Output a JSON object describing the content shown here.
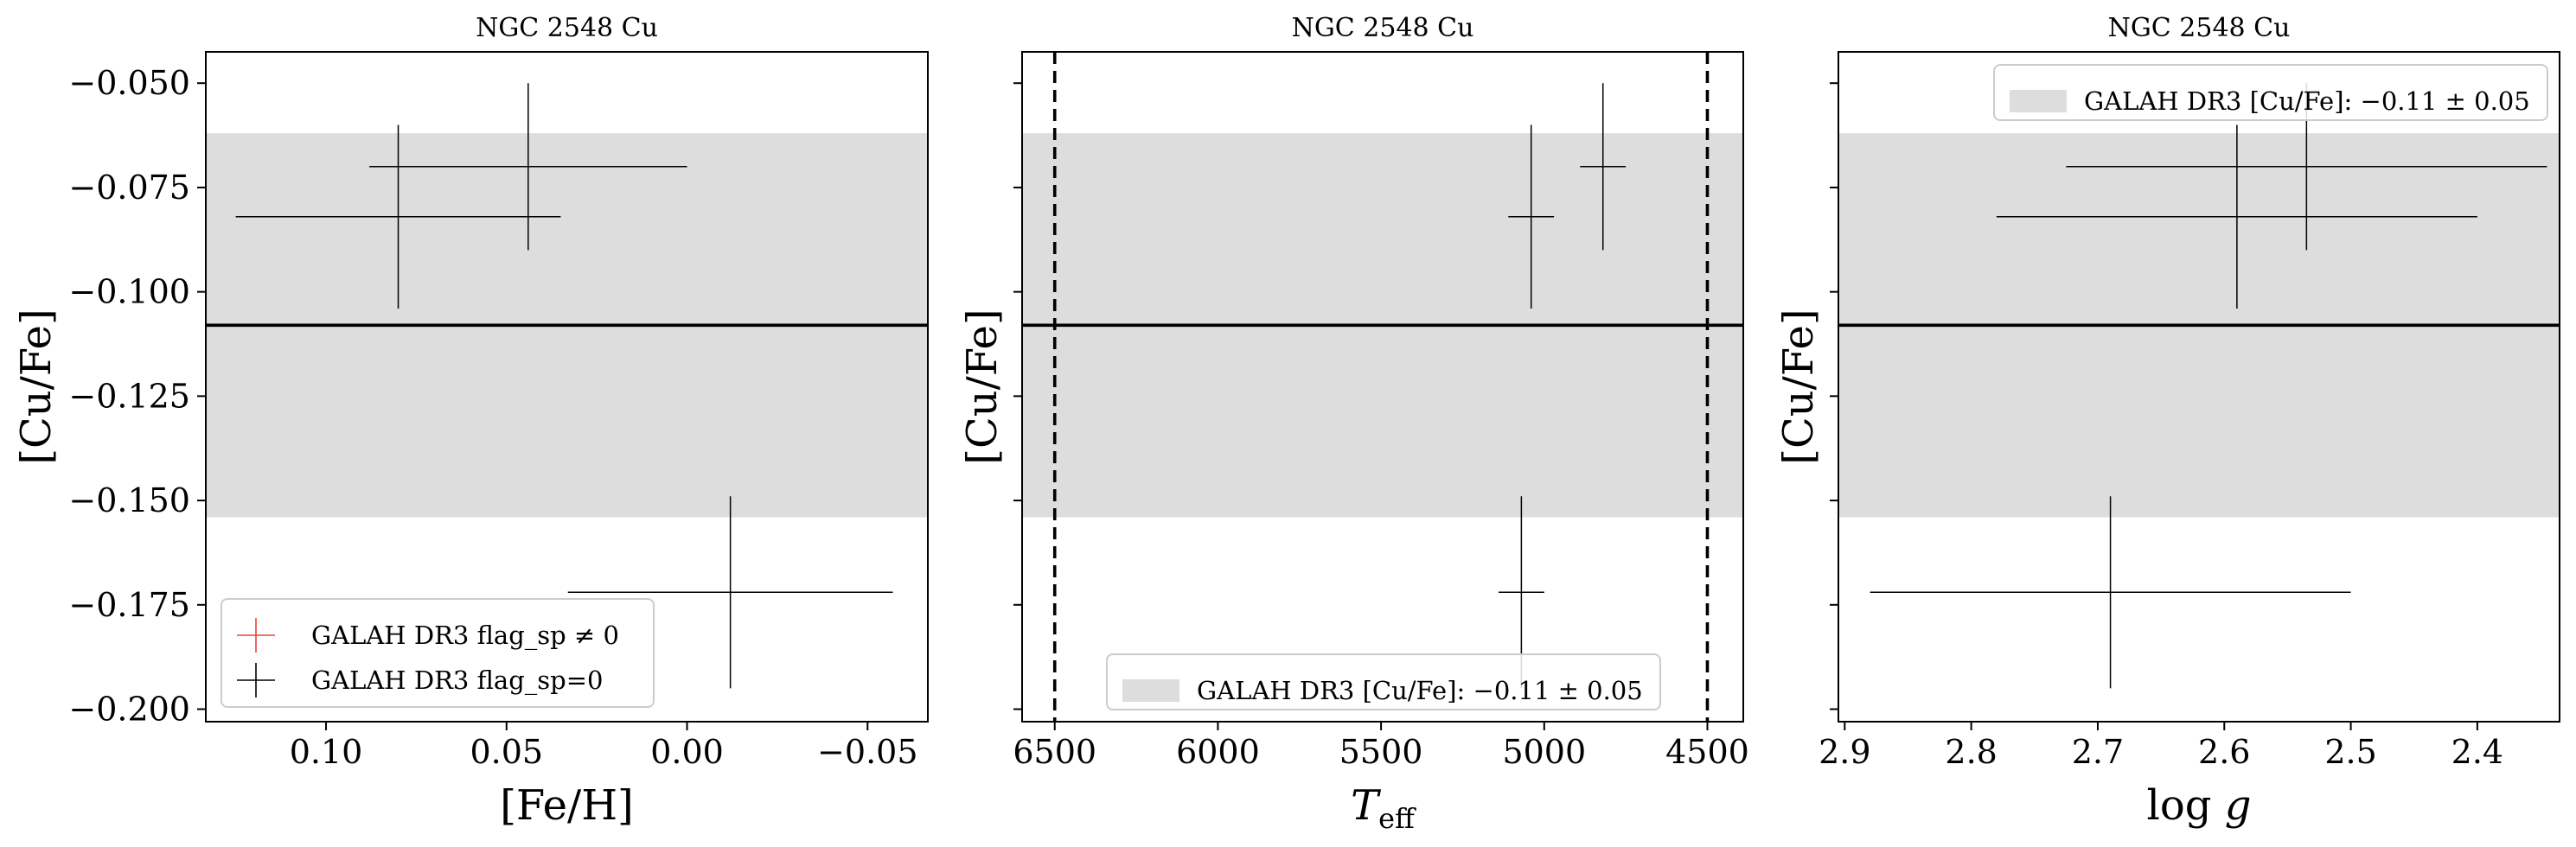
{
  "colors": {
    "band": "#dddddd",
    "mean_line": "#000000",
    "errorbar_flag_zero": "#000000",
    "errorbar_flag_nonzero": "#e8453c",
    "limit_line": "#000000"
  },
  "legend": {
    "flag_nonzero_label": "GALAH DR3 flag_sp ≠ 0",
    "flag_zero_label": "GALAH DR3 flag_sp=0",
    "band_label": "GALAH DR3 [Cu/Fe]: −0.11 ± 0.05"
  },
  "chart_data": [
    {
      "type": "scatter",
      "title": "NGC 2548 Cu",
      "xlabel": "[Fe/H]",
      "ylabel": "[Cu/Fe]",
      "x_inverted": true,
      "xlim": [
        0.1333,
        -0.0667
      ],
      "ylim": [
        -0.203,
        -0.0425
      ],
      "xticks": [
        0.1,
        0.05,
        0.0,
        -0.05
      ],
      "xtick_labels": [
        "0.10",
        "0.05",
        "0.00",
        "−0.05"
      ],
      "yticks": [
        -0.2,
        -0.175,
        -0.15,
        -0.125,
        -0.1,
        -0.075,
        -0.05
      ],
      "ytick_labels": [
        "−0.200",
        "−0.175",
        "−0.150",
        "−0.125",
        "−0.100",
        "−0.075",
        "−0.050"
      ],
      "show_y_tick_labels": true,
      "band": {
        "mean": -0.108,
        "low": -0.154,
        "high": -0.062
      },
      "vlines": [],
      "legend_position": "lower-left",
      "points": [
        {
          "x": 0.08,
          "y": -0.082,
          "xerr": 0.045,
          "yerr": 0.022
        },
        {
          "x": 0.044,
          "y": -0.07,
          "xerr": 0.044,
          "yerr": 0.02
        },
        {
          "x": -0.012,
          "y": -0.172,
          "xerr": 0.045,
          "yerr": 0.023
        }
      ]
    },
    {
      "type": "scatter",
      "title": "NGC 2548 Cu",
      "xlabel": "T_eff",
      "ylabel": "[Cu/Fe]",
      "x_inverted": true,
      "xlim": [
        6600,
        4390
      ],
      "ylim": [
        -0.203,
        -0.0425
      ],
      "xticks": [
        6500,
        6000,
        5500,
        5000,
        4500
      ],
      "xtick_labels": [
        "6500",
        "6000",
        "5500",
        "5000",
        "4500"
      ],
      "yticks": [
        -0.2,
        -0.175,
        -0.15,
        -0.125,
        -0.1,
        -0.075,
        -0.05
      ],
      "ytick_labels": [],
      "show_y_tick_labels": false,
      "band": {
        "mean": -0.108,
        "low": -0.154,
        "high": -0.062
      },
      "vlines": [
        6500,
        4500
      ],
      "legend_position": "lower-center",
      "points": [
        {
          "x": 5040,
          "y": -0.082,
          "xerr": 70,
          "yerr": 0.022
        },
        {
          "x": 4820,
          "y": -0.07,
          "xerr": 70,
          "yerr": 0.02
        },
        {
          "x": 5070,
          "y": -0.172,
          "xerr": 70,
          "yerr": 0.023
        }
      ]
    },
    {
      "type": "scatter",
      "title": "NGC 2548 Cu",
      "xlabel": "log g",
      "ylabel": "[Cu/Fe]",
      "x_inverted": true,
      "xlim": [
        2.905,
        2.335
      ],
      "ylim": [
        -0.203,
        -0.0425
      ],
      "xticks": [
        2.9,
        2.8,
        2.7,
        2.6,
        2.5,
        2.4
      ],
      "xtick_labels": [
        "2.9",
        "2.8",
        "2.7",
        "2.6",
        "2.5",
        "2.4"
      ],
      "yticks": [
        -0.2,
        -0.175,
        -0.15,
        -0.125,
        -0.1,
        -0.075,
        -0.05
      ],
      "ytick_labels": [],
      "show_y_tick_labels": false,
      "band": {
        "mean": -0.108,
        "low": -0.154,
        "high": -0.062
      },
      "vlines": [],
      "legend_position": "upper-right",
      "points": [
        {
          "x": 2.59,
          "y": -0.082,
          "xerr": 0.19,
          "yerr": 0.022
        },
        {
          "x": 2.535,
          "y": -0.07,
          "xerr": 0.19,
          "yerr": 0.02
        },
        {
          "x": 2.69,
          "y": -0.172,
          "xerr": 0.19,
          "yerr": 0.023
        }
      ]
    }
  ]
}
